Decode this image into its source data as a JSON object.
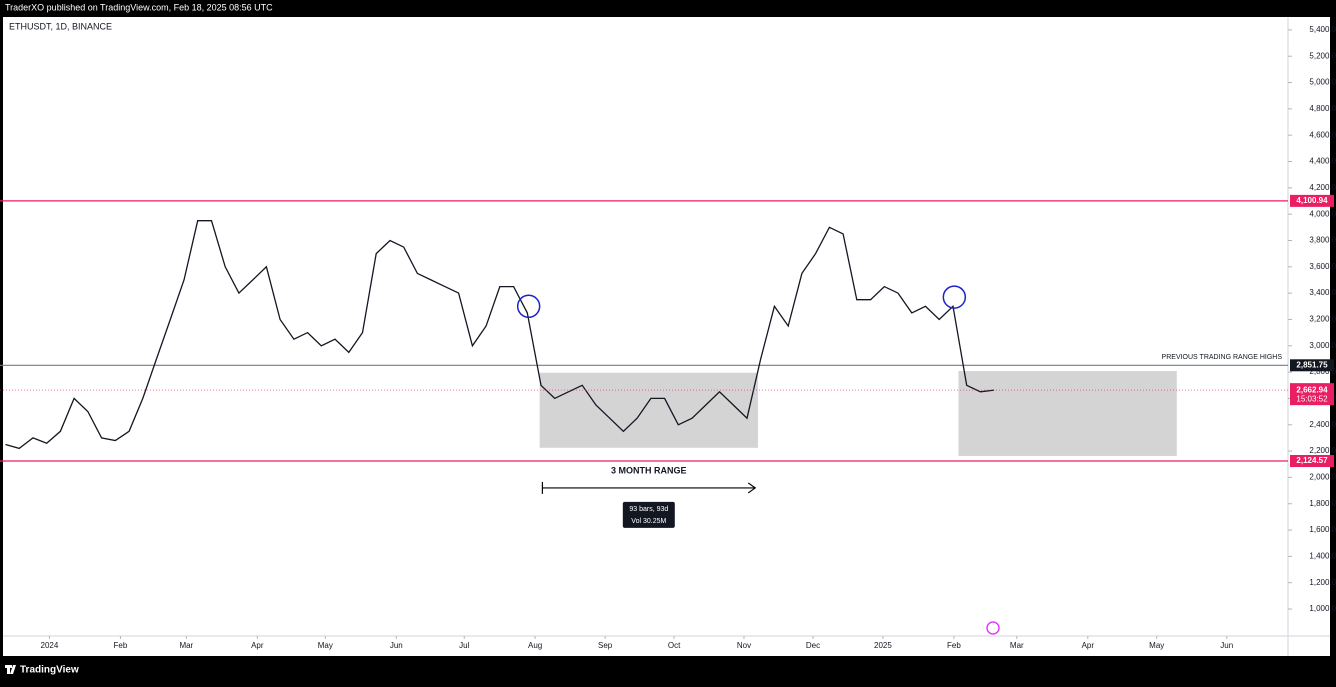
{
  "header": {
    "publisher": "TraderXO published on TradingView.com, Feb 18, 2025 08:56 UTC"
  },
  "footer": {
    "brand": "TradingView"
  },
  "chart_data": {
    "type": "line",
    "symbol": "ETHUSDT, 1D, BINANCE",
    "color": "#131722",
    "values": [
      2250,
      2220,
      2300,
      2260,
      2350,
      2600,
      2500,
      2300,
      2280,
      2350,
      2600,
      2900,
      3200,
      3500,
      3950,
      3950,
      3600,
      3400,
      3500,
      3600,
      3200,
      3050,
      3100,
      3000,
      3050,
      2950,
      3100,
      3700,
      3800,
      3750,
      3550,
      3500,
      3450,
      3400,
      3000,
      3150,
      3450,
      3450,
      3250,
      2700,
      2600,
      2650,
      2700,
      2550,
      2450,
      2350,
      2450,
      2600,
      2600,
      2400,
      2450,
      2550,
      2650,
      2550,
      2450,
      2900,
      3300,
      3150,
      3550,
      3700,
      3900,
      3850,
      3350,
      3350,
      3450,
      3400,
      3250,
      3300,
      3200,
      3300,
      2700,
      2650,
      2662.94
    ],
    "xlim": [
      -0.4,
      93.4
    ],
    "ylim": [
      795,
      5498
    ],
    "xticks": [
      {
        "value": 3.2,
        "label": "2024"
      },
      {
        "value": 8.37,
        "label": "Feb"
      },
      {
        "value": 13.17,
        "label": "Mar"
      },
      {
        "value": 18.34,
        "label": "Apr"
      },
      {
        "value": 23.29,
        "label": "May"
      },
      {
        "value": 28.46,
        "label": "Jun"
      },
      {
        "value": 33.41,
        "label": "Jul"
      },
      {
        "value": 38.57,
        "label": "Aug"
      },
      {
        "value": 43.67,
        "label": "Sep"
      },
      {
        "value": 48.69,
        "label": "Oct"
      },
      {
        "value": 53.78,
        "label": "Nov"
      },
      {
        "value": 58.81,
        "label": "Dec"
      },
      {
        "value": 63.9,
        "label": "2025"
      },
      {
        "value": 69.07,
        "label": "Feb"
      },
      {
        "value": 73.65,
        "label": "Mar"
      },
      {
        "value": 78.82,
        "label": "Apr"
      },
      {
        "value": 83.84,
        "label": "May"
      },
      {
        "value": 88.94,
        "label": "Jun"
      }
    ],
    "yticks": [
      {
        "value": 1000,
        "label": "1,000.00"
      },
      {
        "value": 1200,
        "label": "1,200.00"
      },
      {
        "value": 1400,
        "label": "1,400.00"
      },
      {
        "value": 1600,
        "label": "1,600.00"
      },
      {
        "value": 1800,
        "label": "1,800.00"
      },
      {
        "value": 2000,
        "label": "2,000.00"
      },
      {
        "value": 2200,
        "label": "2,200.00"
      },
      {
        "value": 2400,
        "label": "2,400.00"
      },
      {
        "value": 2600,
        "label": "2,600.00"
      },
      {
        "value": 2800,
        "label": "2,800.00"
      },
      {
        "value": 3000,
        "label": "3,000.00"
      },
      {
        "value": 3200,
        "label": "3,200.00"
      },
      {
        "value": 3400,
        "label": "3,400.00"
      },
      {
        "value": 3600,
        "label": "3,600.00"
      },
      {
        "value": 3800,
        "label": "3,800.00"
      },
      {
        "value": 4000,
        "label": "4,000.00"
      },
      {
        "value": 4200,
        "label": "4,200.00"
      },
      {
        "value": 4400,
        "label": "4,400.00"
      },
      {
        "value": 4600,
        "label": "4,600.00"
      },
      {
        "value": 4800,
        "label": "4,800.00"
      },
      {
        "value": 5000,
        "label": "5,000.00"
      },
      {
        "value": 5200,
        "label": "5,200.00"
      },
      {
        "value": 5400,
        "label": "5,400.00"
      }
    ],
    "levels": [
      {
        "value": 4100.94,
        "label": "4,100.94",
        "color": "#e91e63"
      },
      {
        "value": 2851.75,
        "label": "2,851.75",
        "color": "#787b86"
      },
      {
        "value": 2124.57,
        "label": "2,124.57",
        "color": "#e91e63"
      }
    ],
    "last_price": {
      "value": 2662.94,
      "label": "2,662.94",
      "countdown": "15:03:52",
      "color": "#e91e63"
    },
    "ranges": [
      {
        "start": 38.9,
        "end": 54.8,
        "top": 2795,
        "bottom": 2225
      },
      {
        "start": 69.4,
        "end": 85.3,
        "top": 2808,
        "bottom": 2163
      }
    ],
    "circles": [
      {
        "x": 38.1,
        "price": 3300
      },
      {
        "x": 69.1,
        "price": 3370
      }
    ],
    "range_text": "3 MONTH RANGE",
    "measure": {
      "start": 39.1,
      "end": 54.6,
      "price": 1920,
      "bars": "93 bars, 93d",
      "volume": "Vol 30.25M"
    },
    "level_note": "PREVIOUS TRADING RANGE HIGHS"
  }
}
